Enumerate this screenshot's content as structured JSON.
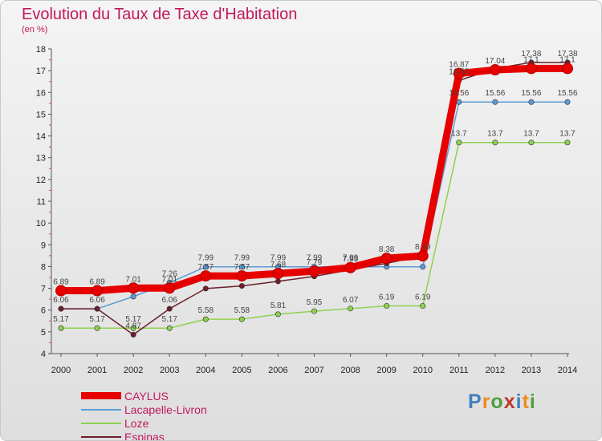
{
  "title": "Evolution du Taux de Taxe d'Habitation",
  "unit_label": "(en %)",
  "logo_text": "Proxiti",
  "logo_colors": [
    "#3f7fbf",
    "#f08a1c",
    "#4f9f3f",
    "#c0392b",
    "#3f7fbf",
    "#f08a1c",
    "#4f9f3f"
  ],
  "chart_data": {
    "type": "line",
    "x": [
      2000,
      2001,
      2002,
      2003,
      2004,
      2005,
      2006,
      2007,
      2008,
      2009,
      2010,
      2011,
      2012,
      2013,
      2014
    ],
    "ylim": [
      4,
      18
    ],
    "yticks": [
      4,
      5,
      6,
      7,
      8,
      9,
      10,
      11,
      12,
      13,
      14,
      15,
      16,
      17,
      18
    ],
    "grid": false,
    "legend_position": "bottom-left",
    "series": [
      {
        "name": "CAYLUS",
        "color": "#e60000",
        "values": [
          6.89,
          6.89,
          7.01,
          7.01,
          7.57,
          7.57,
          7.68,
          7.79,
          7.95,
          8.38,
          8.49,
          16.87,
          17.04,
          17.1,
          17.1
        ],
        "labels": [
          "6.89",
          "6.89",
          "7.01",
          "7.01",
          "7.57",
          "7.57",
          "7.68",
          "7.79",
          "7.95",
          "8.38",
          "8.49",
          "16.87",
          "17.04",
          "17.1",
          "17.1"
        ]
      },
      {
        "name": "Lacapelle-Livron",
        "color": "#5b9bd5",
        "values": [
          6.06,
          6.06,
          6.62,
          7.26,
          7.99,
          7.99,
          7.99,
          7.99,
          7.99,
          7.99,
          7.99,
          15.56,
          15.56,
          15.56,
          15.56
        ],
        "labels": [
          "6.06",
          "6.06",
          "",
          "7.26",
          "7.99",
          "7.99",
          "7.99",
          "7.99",
          "7.99",
          "",
          "",
          "15.56",
          "15.56",
          "15.56",
          "15.56"
        ]
      },
      {
        "name": "Loze",
        "color": "#8fd14f",
        "values": [
          5.17,
          5.17,
          5.17,
          5.17,
          5.58,
          5.58,
          5.81,
          5.95,
          6.07,
          6.19,
          6.19,
          13.7,
          13.7,
          13.7,
          13.7
        ],
        "labels": [
          "5.17",
          "5.17",
          "5.17",
          "5.17",
          "5.58",
          "5.58",
          "5.81",
          "5.95",
          "6.07",
          "6.19",
          "6.19",
          "13.7",
          "13.7",
          "13.7",
          "13.7"
        ]
      },
      {
        "name": "Espinas",
        "color": "#6b1f2a",
        "values": [
          6.06,
          6.06,
          4.87,
          6.06,
          6.99,
          7.11,
          7.32,
          7.55,
          7.85,
          8.15,
          8.49,
          16.55,
          17.1,
          17.38,
          17.38
        ],
        "labels": [
          "",
          "",
          "4.87",
          "6.06",
          "",
          "",
          "",
          "",
          "",
          "",
          "",
          "16.55",
          "",
          "17.38",
          "17.38"
        ]
      }
    ]
  }
}
